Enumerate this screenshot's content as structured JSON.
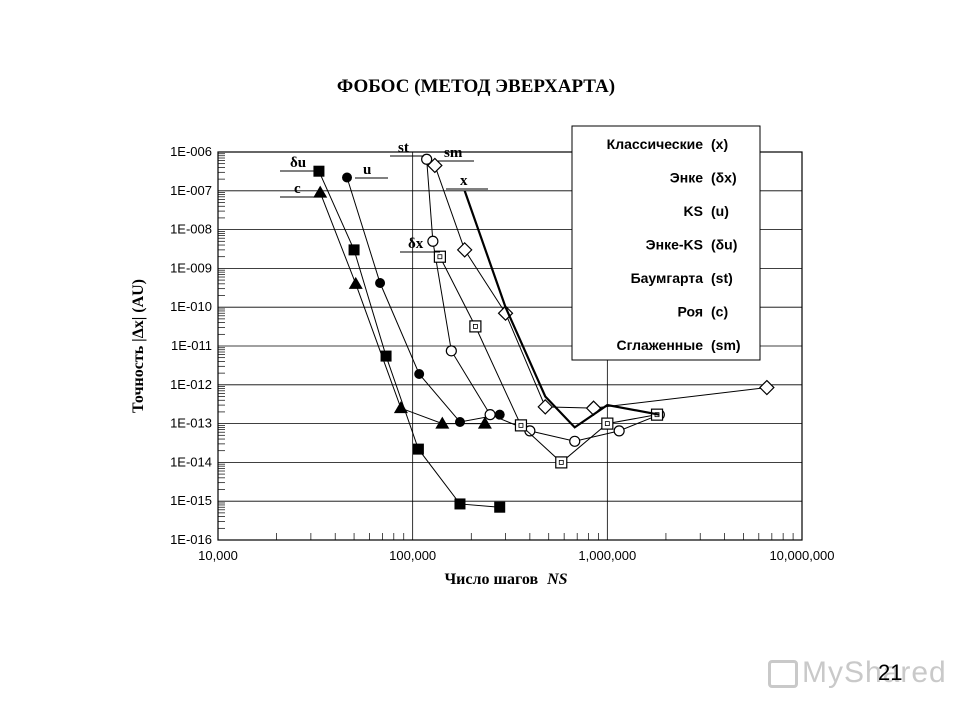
{
  "page_number": "21",
  "watermark": "MyShared",
  "chart_data": {
    "type": "line",
    "title": "ФОБОС (МЕТОД ЭВЕРХАРТА)",
    "xlabel": "Число шагов",
    "xlabel_italic": "NS",
    "ylabel": "Точность |Δx| (AU)",
    "x_scale": "log",
    "y_scale": "log",
    "xlim": [
      10000,
      10000000
    ],
    "ylim": [
      1e-16,
      1e-06
    ],
    "x_ticks": [
      10000,
      100000,
      1000000,
      10000000
    ],
    "x_tick_labels": [
      "10,000",
      "100,000",
      "1,000,000",
      "10,000,000"
    ],
    "y_ticks": [
      1e-06,
      1e-07,
      1e-08,
      1e-09,
      1e-10,
      1e-11,
      1e-12,
      1e-13,
      1e-14,
      1e-15,
      1e-16
    ],
    "y_tick_labels": [
      "1E-006",
      "1E-007",
      "1E-008",
      "1E-009",
      "1E-010",
      "1E-011",
      "1E-012",
      "1E-013",
      "1E-014",
      "1E-015",
      "1E-016"
    ],
    "grid": true,
    "legend": {
      "placement": "top-right",
      "entries": [
        {
          "name": "Классические",
          "code": "(x)"
        },
        {
          "name": "Энке",
          "code": "(δx)"
        },
        {
          "name": "KS",
          "code": "(u)"
        },
        {
          "name": "Энке-KS",
          "code": "(δu)"
        },
        {
          "name": "Баумгарта",
          "code": "(st)"
        },
        {
          "name": "Роя",
          "code": "(c)"
        },
        {
          "name": "Сглаженные",
          "code": "(sm)"
        }
      ]
    },
    "series": [
      {
        "name": "δu",
        "marker": "square-filled",
        "x": [
          33000,
          50000,
          73000,
          107000,
          175000,
          280000
        ],
        "y": [
          3.2e-07,
          3e-09,
          5.5e-12,
          2.2e-14,
          8.5e-16,
          7e-16
        ]
      },
      {
        "name": "u",
        "marker": "circle-filled",
        "x": [
          46000,
          68000,
          108000,
          175000,
          280000
        ],
        "y": [
          2.2e-07,
          4.2e-10,
          1.9e-12,
          1.1e-13,
          1.7e-13
        ]
      },
      {
        "name": "c",
        "marker": "triangle-filled",
        "x": [
          33500,
          51000,
          87000,
          142000,
          235000
        ],
        "y": [
          9e-08,
          4e-10,
          2.5e-13,
          1e-13,
          1e-13
        ]
      },
      {
        "name": "st",
        "marker": "circle-open",
        "x": [
          118000,
          127000,
          158000,
          250000,
          400000,
          680000,
          1150000,
          1850000
        ],
        "y": [
          6.5e-07,
          5e-09,
          7.5e-12,
          1.7e-13,
          6.5e-14,
          3.5e-14,
          6.5e-14,
          1.7e-13
        ]
      },
      {
        "name": "δx",
        "marker": "square-open",
        "x": [
          138000,
          210000,
          360000,
          580000,
          1000000,
          1800000
        ],
        "y": [
          2e-09,
          3.2e-11,
          9e-14,
          1e-14,
          1e-13,
          1.7e-13
        ]
      },
      {
        "name": "sm",
        "marker": "diamond-open",
        "x": [
          130000,
          185000,
          300000,
          480000,
          850000,
          6600000
        ],
        "y": [
          4.5e-07,
          3e-09,
          7e-11,
          2.7e-13,
          2.5e-13,
          8.5e-13
        ]
      },
      {
        "name": "x",
        "marker": "none",
        "x": [
          185000,
          300000,
          480000,
          680000,
          1000000,
          1850000
        ],
        "y": [
          1e-07,
          1e-10,
          5e-13,
          8e-14,
          3e-13,
          1.7e-13
        ]
      }
    ]
  }
}
